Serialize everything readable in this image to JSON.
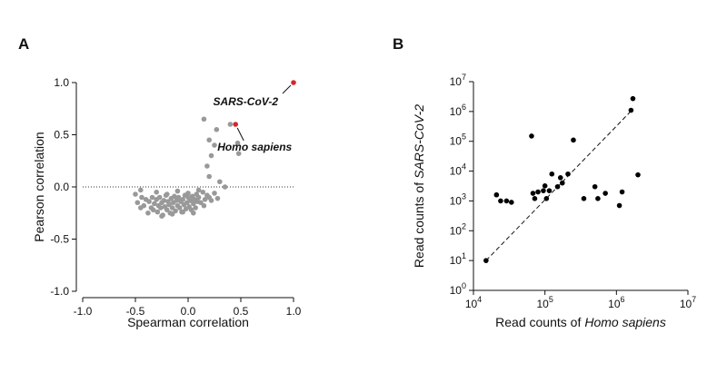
{
  "chart_data": [
    {
      "type": "scatter",
      "panel_label": "A",
      "x_label": "Spearman correlation",
      "y_label": "Pearson correlation",
      "xlim": [
        -1,
        1
      ],
      "ylim": [
        -1,
        1
      ],
      "xticks": [
        {
          "value": -1,
          "label": "-1.0"
        },
        -0.5,
        {
          "value": 0,
          "label": "0.0"
        },
        0.5,
        {
          "value": 1,
          "label": "1.0"
        }
      ],
      "yticks": [
        {
          "value": -1,
          "label": "-1.0"
        },
        -0.5,
        {
          "value": 0,
          "label": "0.0"
        },
        0.5,
        {
          "value": 1,
          "label": "1.0"
        }
      ],
      "log_x": false,
      "log_y": false,
      "hline": 0,
      "series": [
        {
          "color": "#999999",
          "x": [
            -0.48,
            -0.45,
            -0.44,
            -0.42,
            -0.4,
            -0.38,
            -0.37,
            -0.35,
            -0.34,
            -0.33,
            -0.32,
            -0.3,
            -0.29,
            -0.28,
            -0.27,
            -0.26,
            -0.25,
            -0.24,
            -0.23,
            -0.22,
            -0.21,
            -0.2,
            -0.19,
            -0.18,
            -0.17,
            -0.16,
            -0.15,
            -0.14,
            -0.13,
            -0.12,
            -0.11,
            -0.1,
            -0.09,
            -0.08,
            -0.07,
            -0.06,
            -0.05,
            -0.04,
            -0.03,
            -0.02,
            -0.01,
            0.0,
            0.01,
            0.02,
            0.03,
            0.04,
            0.05,
            0.06,
            0.07,
            0.08,
            0.09,
            0.1,
            0.12,
            0.14,
            0.16,
            0.18,
            0.2,
            0.22,
            0.25,
            0.28,
            -0.3,
            -0.2,
            -0.1,
            0.0,
            0.1,
            -0.25,
            -0.15,
            -0.05,
            0.05,
            0.15,
            0.15,
            0.2,
            0.25,
            0.22,
            0.18,
            0.2,
            0.4,
            0.47,
            0.48,
            0.3,
            0.27,
            0.35,
            -0.5,
            -0.45
          ],
          "values": [
            -0.15,
            -0.2,
            -0.1,
            -0.18,
            -0.12,
            -0.25,
            -0.14,
            -0.2,
            -0.1,
            -0.22,
            -0.16,
            -0.12,
            -0.24,
            -0.18,
            -0.1,
            -0.2,
            -0.15,
            -0.27,
            -0.13,
            -0.19,
            -0.08,
            -0.22,
            -0.14,
            -0.17,
            -0.25,
            -0.11,
            -0.2,
            -0.15,
            -0.09,
            -0.23,
            -0.13,
            -0.18,
            -0.1,
            -0.2,
            -0.14,
            -0.24,
            -0.12,
            -0.17,
            -0.08,
            -0.21,
            -0.15,
            -0.1,
            -0.19,
            -0.13,
            -0.22,
            -0.09,
            -0.16,
            -0.12,
            -0.2,
            -0.07,
            -0.14,
            -0.1,
            -0.15,
            -0.05,
            -0.12,
            -0.08,
            -0.1,
            -0.13,
            -0.06,
            -0.11,
            -0.05,
            -0.07,
            -0.04,
            -0.06,
            -0.03,
            -0.28,
            -0.26,
            -0.24,
            -0.25,
            -0.18,
            0.65,
            0.45,
            0.4,
            0.3,
            0.2,
            0.1,
            0.6,
            0.42,
            0.32,
            0.05,
            0.55,
            0.0,
            -0.07,
            -0.03
          ]
        },
        {
          "color": "#d62728",
          "x": [
            1.0,
            0.45
          ],
          "values": [
            1.0,
            0.6
          ],
          "labels": [
            "SARS-CoV-2",
            "Homo sapiens"
          ]
        }
      ]
    },
    {
      "type": "scatter",
      "panel_label": "B",
      "x_label": {
        "text": "Read counts of",
        "italic": "Homo sapiens"
      },
      "y_label": {
        "text": "Read counts of",
        "italic": "SARS-CoV-2"
      },
      "xlim": [
        10000,
        10000000
      ],
      "ylim": [
        1,
        10000000
      ],
      "xticks": [
        {
          "value": 10000,
          "label": "10^4"
        },
        {
          "value": 100000,
          "label": "10^5"
        },
        {
          "value": 1000000,
          "label": "10^6"
        },
        {
          "value": 10000000,
          "label": "10^7"
        }
      ],
      "yticks": [
        {
          "value": 1,
          "label": "10^0"
        },
        {
          "value": 10,
          "label": "10^1"
        },
        {
          "value": 100,
          "label": "10^2"
        },
        {
          "value": 1000,
          "label": "10^3"
        },
        {
          "value": 10000,
          "label": "10^4"
        },
        {
          "value": 100000,
          "label": "10^5"
        },
        {
          "value": 1000000,
          "label": "10^6"
        },
        {
          "value": 10000000,
          "label": "10^7"
        }
      ],
      "log_x": true,
      "log_y": true,
      "fit_line": {
        "x": [
          15000,
          1700000
        ],
        "values": [
          10,
          1200000
        ]
      },
      "series": [
        {
          "color": "#000000",
          "x": [
            15000,
            21000,
            24000,
            29000,
            34000,
            65000,
            68000,
            72000,
            80000,
            95000,
            100000,
            105000,
            115000,
            125000,
            150000,
            165000,
            175000,
            210000,
            250000,
            350000,
            500000,
            550000,
            700000,
            1100000,
            1200000,
            1600000,
            1700000,
            2000000
          ],
          "values": [
            10,
            1600,
            1000,
            1000,
            900,
            150000,
            1800,
            1200,
            2000,
            2200,
            3200,
            1200,
            2200,
            8000,
            3000,
            6000,
            4000,
            8000,
            110000,
            1200,
            3000,
            1200,
            1800,
            700,
            2000,
            1100000,
            2700000,
            7500
          ]
        }
      ]
    }
  ]
}
